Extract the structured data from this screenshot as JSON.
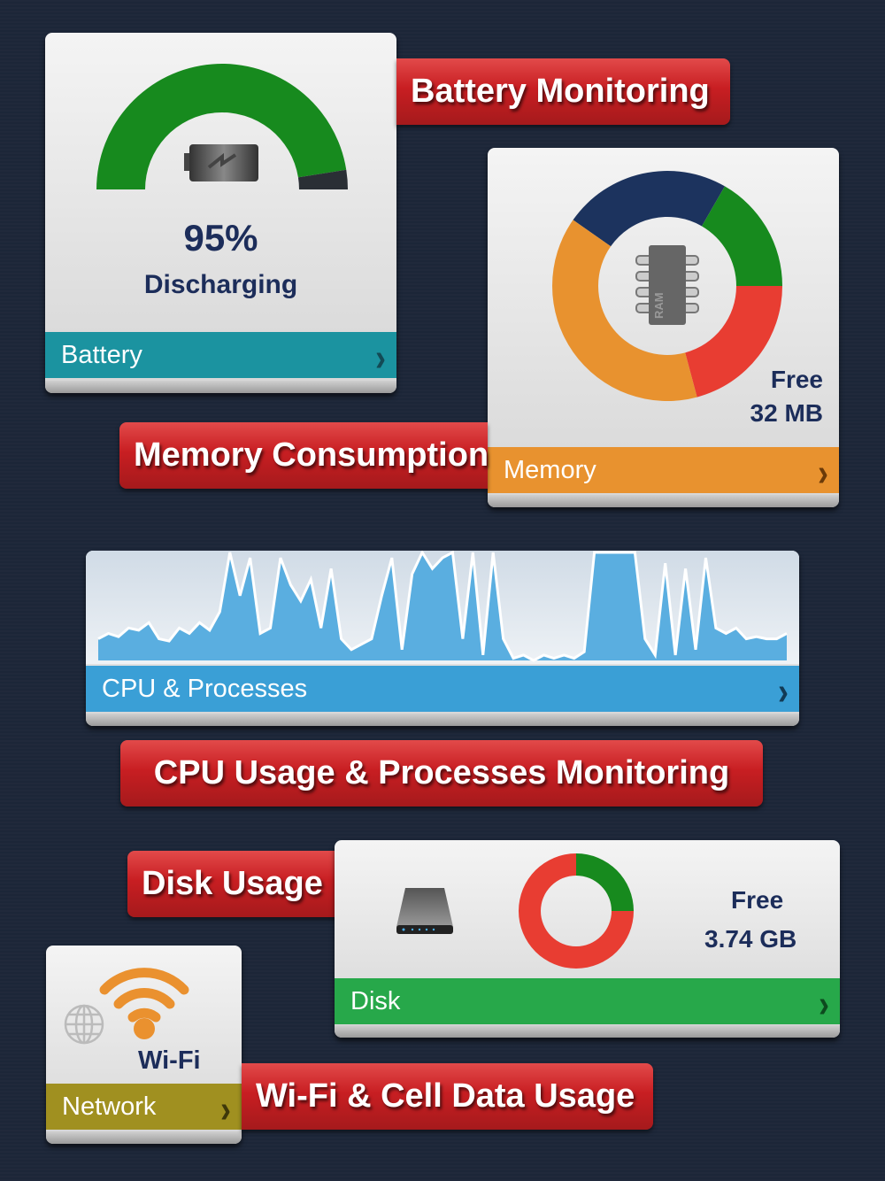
{
  "battery": {
    "percent_label": "95%",
    "level": 95,
    "status": "Discharging",
    "bar_label": "Battery",
    "ribbon": "Battery Monitoring",
    "bar_color": "#1b93a0",
    "gauge_color": "#178a1e"
  },
  "memory": {
    "free_label": "Free",
    "free_value": "32 MB",
    "bar_label": "Memory",
    "ribbon": "Memory Consumption",
    "chip_label": "RAM",
    "bar_color": "#e8922f",
    "segments": [
      {
        "color": "#1c335e",
        "degrees": 85
      },
      {
        "color": "#178a1e",
        "degrees": 60
      },
      {
        "color": "#e83d32",
        "degrees": 75
      },
      {
        "color": "#e8922f",
        "degrees": 140
      }
    ]
  },
  "cpu": {
    "bar_label": "CPU & Processes",
    "ribbon": "CPU Usage & Processes Monitoring",
    "bar_color": "#3a9fd6",
    "history": [
      0.2,
      0.25,
      0.22,
      0.3,
      0.28,
      0.35,
      0.2,
      0.18,
      0.3,
      0.25,
      0.35,
      0.28,
      0.45,
      1,
      0.6,
      0.95,
      0.25,
      0.3,
      0.95,
      0.7,
      0.55,
      0.75,
      0.3,
      0.85,
      0.2,
      0.1,
      0.15,
      0.2,
      0.6,
      0.95,
      0.1,
      0.8,
      1,
      0.85,
      0.95,
      1,
      0.2,
      1,
      0.05,
      1,
      0.2,
      0.02,
      0.05,
      0.0,
      0.05,
      0.02,
      0.05,
      0.02,
      0.08,
      1,
      1,
      1,
      1,
      1,
      0.2,
      0.05,
      0.9,
      0.05,
      0.85,
      0.1,
      0.95,
      0.3,
      0.25,
      0.3,
      0.2,
      0.22,
      0.2,
      0.2,
      0.25
    ]
  },
  "disk": {
    "free_label": "Free",
    "free_value": "3.74 GB",
    "bar_label": "Disk",
    "ribbon": "Disk Usage",
    "bar_color": "#27a84a",
    "free_fraction": 0.25
  },
  "network": {
    "wifi_label": "Wi-Fi",
    "bar_label": "Network",
    "ribbon": "Wi-Fi & Cell Data Usage",
    "bar_color": "#a09020"
  }
}
